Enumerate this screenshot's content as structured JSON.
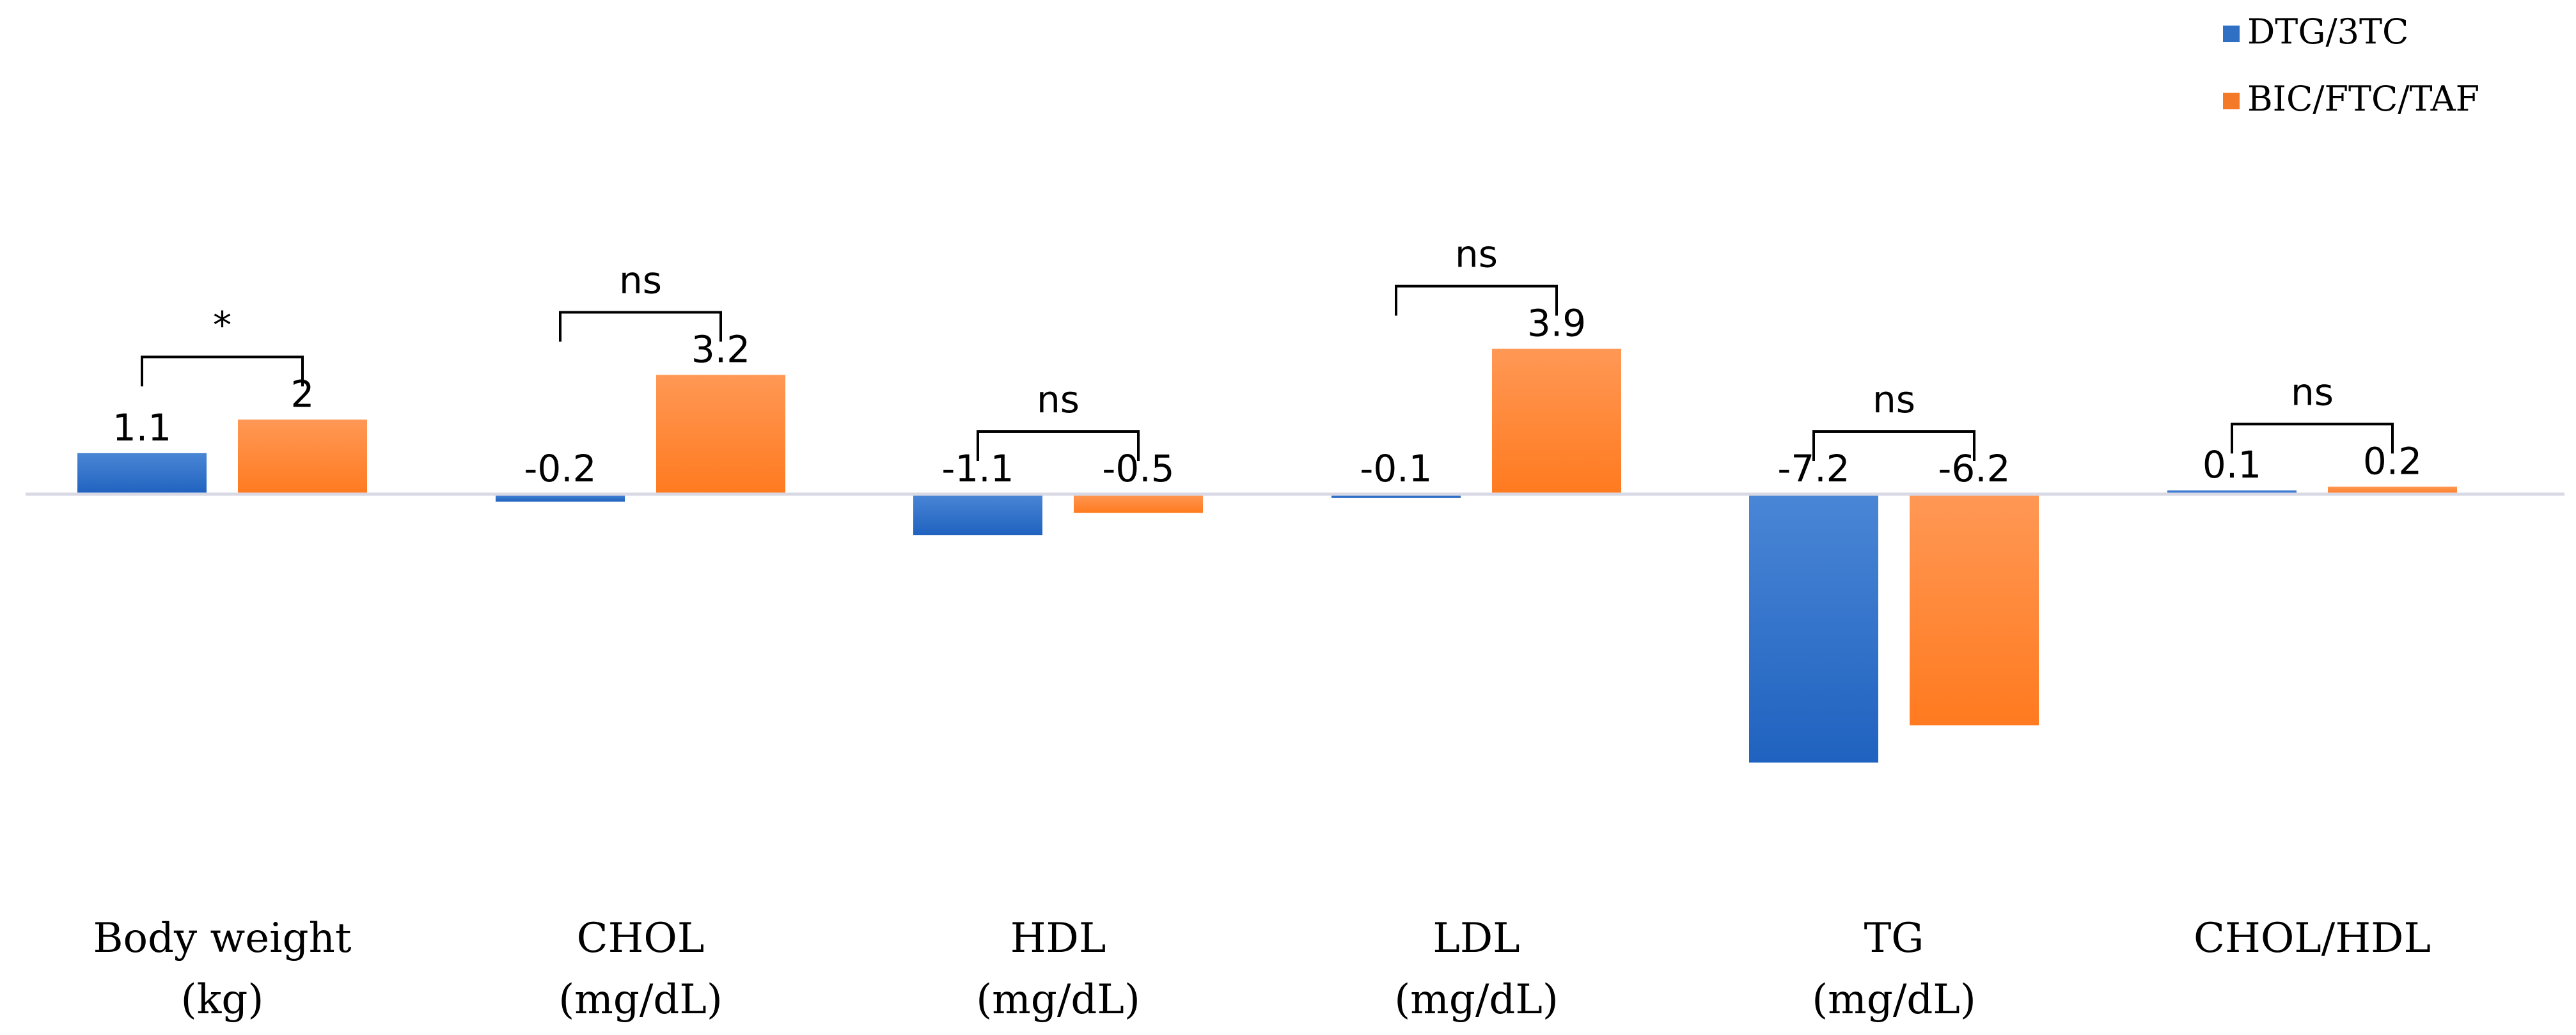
{
  "chart_data": {
    "type": "bar",
    "title": "",
    "xlabel": "",
    "ylabel": "",
    "categories": [
      [
        "Body weight",
        "(kg)"
      ],
      [
        "CHOL",
        "(mg/dL)"
      ],
      [
        "HDL",
        "(mg/dL)"
      ],
      [
        "LDL",
        "(mg/dL)"
      ],
      [
        "TG",
        "(mg/dL)"
      ],
      [
        "CHOL/HDL"
      ]
    ],
    "series": [
      {
        "name": "DTG/3TC",
        "color": "#2f6fc4",
        "values": [
          1.1,
          -0.2,
          -1.1,
          -0.1,
          -7.2,
          0.1
        ],
        "labels": [
          "1.1",
          "-0.2",
          "-1.1",
          "-0.1",
          "-7.2",
          "0.1"
        ]
      },
      {
        "name": "BIC/FTC/TAF",
        "color": "#f47a2a",
        "values": [
          2,
          3.2,
          -0.5,
          3.9,
          -6.2,
          0.2
        ],
        "labels": [
          "2",
          "3.2",
          "-0.5",
          "3.9",
          "-6.2",
          "0.2"
        ]
      }
    ],
    "significance": [
      "*",
      "ns",
      "ns",
      "ns",
      "ns",
      "ns"
    ],
    "legend": {
      "position": "top-right"
    },
    "grid": false
  }
}
